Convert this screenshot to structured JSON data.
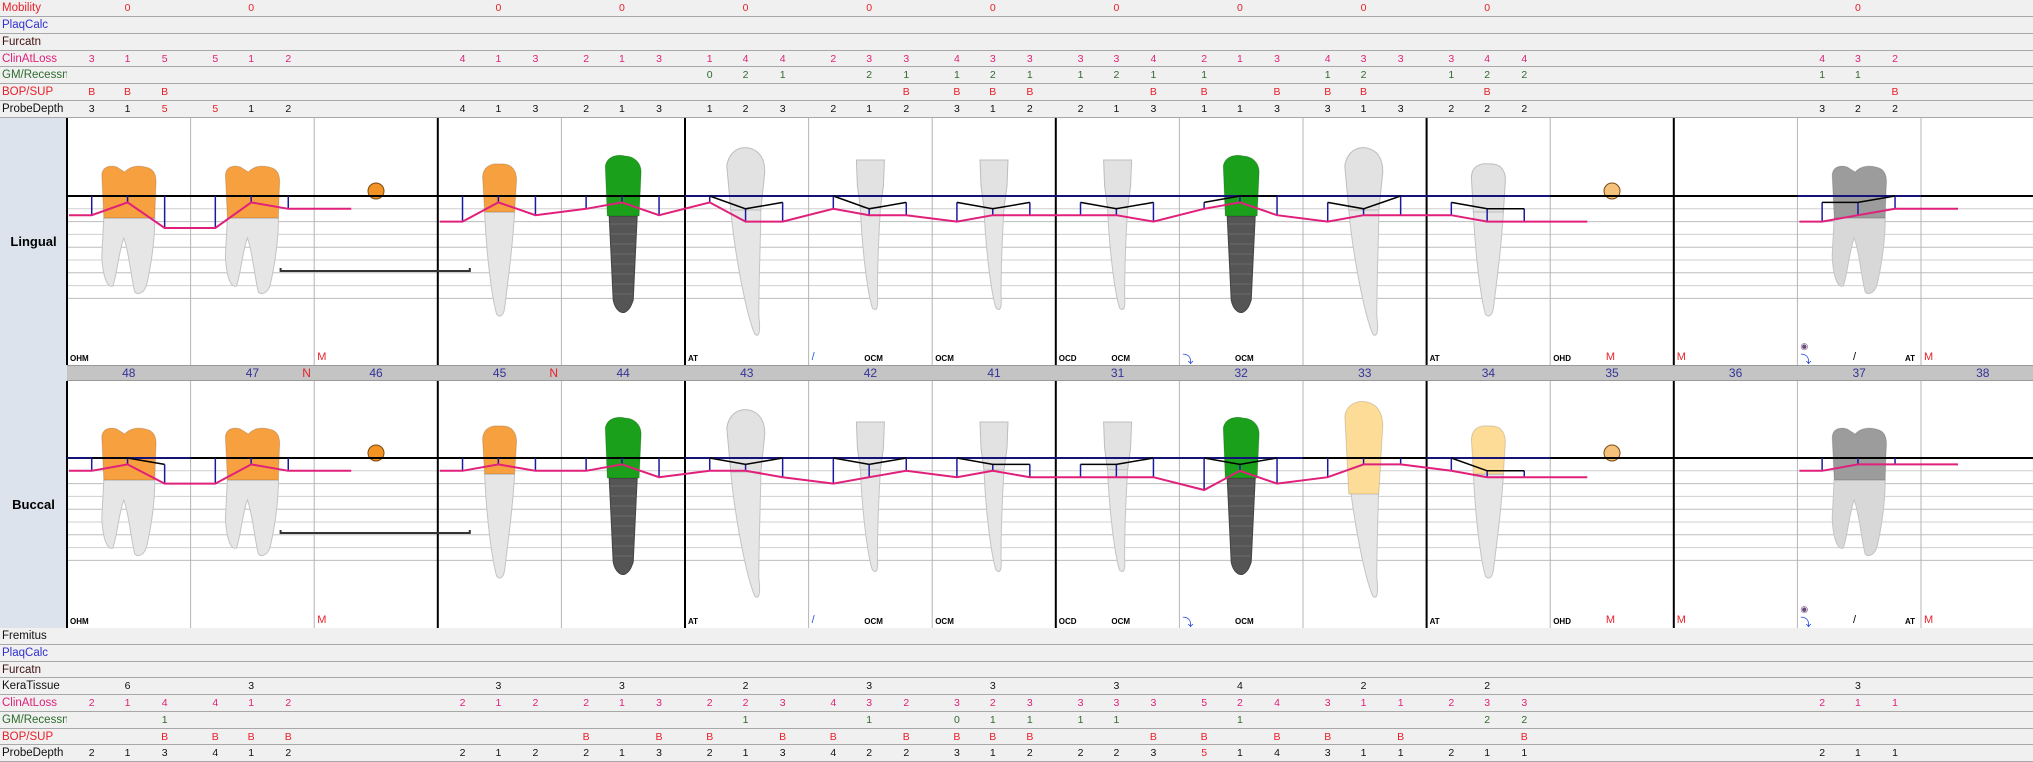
{
  "sections": {
    "lingual": "Lingual",
    "buccal": "Buccal"
  },
  "colors": {
    "mobility": "#e8202a",
    "plaq": "#3030d0",
    "furc": "#401010",
    "cal": "#e0207a",
    "gm": "#2e6b2e",
    "bop": "#e8202a",
    "pd": "#111111",
    "kera": "#111111",
    "fremitus": "#111111",
    "pd_high": "#e8202a",
    "cal_line": "#e0207a",
    "pd_line": "#1a1aa0",
    "gm_line": "#000000",
    "crown_orange": "#f7a040",
    "crown_green": "#1aa01a",
    "crown_white": "#e2e2e2",
    "crown_yellow": "#fddc98",
    "crown_gray": "#9c9c9c",
    "implant_root": "#555555",
    "pontic_orange": "#f39323",
    "pontic_light": "#f5c27e",
    "tooth_number": "#333399"
  },
  "top_rows": [
    {
      "label": "Mobility",
      "key": "mobility"
    },
    {
      "label": "PlaqCalc",
      "key": "plaq"
    },
    {
      "label": "Furcatn",
      "key": "furc"
    },
    {
      "label": "ClinAtLoss",
      "key": "cal"
    },
    {
      "label": "GM/Recessn",
      "key": "gm"
    },
    {
      "label": "BOP/SUP",
      "key": "bop"
    },
    {
      "label": "ProbeDepth",
      "key": "pd"
    }
  ],
  "bottom_rows": [
    {
      "label": "Fremitus",
      "key": "fremitus"
    },
    {
      "label": "PlaqCalc",
      "key": "plaq"
    },
    {
      "label": "Furcatn",
      "key": "furc"
    },
    {
      "label": "KeraTissue",
      "key": "kera"
    },
    {
      "label": "ClinAtLoss",
      "key": "cal"
    },
    {
      "label": "GM/Recessn",
      "key": "gm"
    },
    {
      "label": "BOP/SUP",
      "key": "bop"
    },
    {
      "label": "ProbeDepth",
      "key": "pd"
    }
  ],
  "teeth": [
    {
      "number": "48",
      "type": "molar",
      "crown": {
        "lingual": "orange",
        "buccal": "orange"
      },
      "flag": "",
      "lingual": {
        "mobility": "0",
        "cal": [
          "3",
          "1",
          "5"
        ],
        "gm": [
          "",
          "",
          ""
        ],
        "bop": [
          "B",
          "B",
          "B"
        ],
        "pd": [
          "3",
          "1",
          "5"
        ]
      },
      "buccal": {
        "kera": "6",
        "cal": [
          "2",
          "1",
          "4"
        ],
        "gm": [
          "",
          "",
          "1"
        ],
        "bop": [
          "",
          "",
          "B"
        ],
        "pd": [
          "2",
          "1",
          "3"
        ]
      },
      "notes": [
        {
          "text": "OHM",
          "pos": "left",
          "color": "#000000"
        }
      ]
    },
    {
      "number": "47",
      "type": "molar",
      "crown": {
        "lingual": "orange",
        "buccal": "orange"
      },
      "flag": "N",
      "lingual": {
        "mobility": "0",
        "cal": [
          "5",
          "1",
          "2"
        ],
        "gm": [
          "",
          "",
          ""
        ],
        "bop": [
          "",
          "",
          ""
        ],
        "pd": [
          "5",
          "1",
          "2"
        ]
      },
      "buccal": {
        "kera": "3",
        "cal": [
          "4",
          "1",
          "2"
        ],
        "gm": [
          "",
          "",
          ""
        ],
        "bop": [
          "B",
          "B",
          "B"
        ],
        "pd": [
          "4",
          "1",
          "2"
        ]
      },
      "notes": []
    },
    {
      "number": "46",
      "type": "pontic",
      "pontic": "orange",
      "flag": "",
      "notes": [
        {
          "text": "M",
          "pos": "left",
          "color": "#e8202a",
          "big": true
        }
      ]
    },
    {
      "number": "45",
      "type": "premolar",
      "crown": {
        "lingual": "orange",
        "buccal": "orange"
      },
      "flag": "N",
      "lingual": {
        "mobility": "0",
        "cal": [
          "4",
          "1",
          "3"
        ],
        "gm": [
          "",
          "",
          ""
        ],
        "bop": [
          "",
          "",
          ""
        ],
        "pd": [
          "4",
          "1",
          "3"
        ]
      },
      "buccal": {
        "kera": "3",
        "cal": [
          "2",
          "1",
          "2"
        ],
        "gm": [
          "",
          "",
          ""
        ],
        "bop": [
          "",
          "",
          ""
        ],
        "pd": [
          "2",
          "1",
          "2"
        ]
      },
      "notes": []
    },
    {
      "number": "44",
      "type": "implant",
      "crown": {
        "lingual": "green",
        "buccal": "green"
      },
      "flag": "",
      "lingual": {
        "mobility": "0",
        "cal": [
          "2",
          "1",
          "3"
        ],
        "gm": [
          "",
          "",
          ""
        ],
        "bop": [
          "",
          "",
          ""
        ],
        "pd": [
          "2",
          "1",
          "3"
        ]
      },
      "buccal": {
        "kera": "3",
        "cal": [
          "2",
          "1",
          "3"
        ],
        "gm": [
          "",
          "",
          ""
        ],
        "bop": [
          "B",
          "",
          "B"
        ],
        "pd": [
          "2",
          "1",
          "3"
        ]
      },
      "notes": []
    },
    {
      "number": "43",
      "type": "canine",
      "crown": {
        "lingual": "white",
        "buccal": "white"
      },
      "flag": "",
      "lingual": {
        "mobility": "0",
        "cal": [
          "1",
          "4",
          "4"
        ],
        "gm": [
          "0",
          "2",
          "1"
        ],
        "bop": [
          "",
          "",
          ""
        ],
        "pd": [
          "1",
          "2",
          "3"
        ]
      },
      "buccal": {
        "kera": "2",
        "cal": [
          "2",
          "2",
          "3"
        ],
        "gm": [
          "",
          "1",
          ""
        ],
        "bop": [
          "B",
          "",
          "B"
        ],
        "pd": [
          "2",
          "1",
          "3"
        ]
      },
      "notes": [
        {
          "text": "AT",
          "pos": "left",
          "color": "#000000"
        }
      ]
    },
    {
      "number": "42",
      "type": "incisor",
      "crown": {
        "lingual": "white",
        "buccal": "white"
      },
      "flag": "",
      "lingual": {
        "mobility": "0",
        "cal": [
          "2",
          "3",
          "3"
        ],
        "gm": [
          "",
          "2",
          "1"
        ],
        "bop": [
          "",
          "",
          "B"
        ],
        "pd": [
          "2",
          "1",
          "2"
        ]
      },
      "buccal": {
        "kera": "3",
        "cal": [
          "4",
          "3",
          "2"
        ],
        "gm": [
          "",
          "1",
          ""
        ],
        "bop": [
          "B",
          "",
          "B"
        ],
        "pd": [
          "4",
          "2",
          "2"
        ]
      },
      "notes": [
        {
          "text": "/",
          "pos": "left",
          "color": "#1a5fd0",
          "big": true
        },
        {
          "text": "OCM",
          "pos": "center",
          "color": "#000000"
        }
      ]
    },
    {
      "number": "41",
      "type": "incisor",
      "crown": {
        "lingual": "white",
        "buccal": "white"
      },
      "flag": "",
      "lingual": {
        "mobility": "0",
        "cal": [
          "4",
          "3",
          "3"
        ],
        "gm": [
          "1",
          "2",
          "1"
        ],
        "bop": [
          "B",
          "B",
          "B"
        ],
        "pd": [
          "3",
          "1",
          "2"
        ]
      },
      "buccal": {
        "kera": "3",
        "cal": [
          "3",
          "2",
          "3"
        ],
        "gm": [
          "0",
          "1",
          "1"
        ],
        "bop": [
          "B",
          "B",
          "B"
        ],
        "pd": [
          "3",
          "1",
          "2"
        ]
      },
      "notes": [
        {
          "text": "OCM",
          "pos": "left",
          "color": "#000000"
        }
      ]
    },
    {
      "number": "31",
      "type": "incisor",
      "crown": {
        "lingual": "white",
        "buccal": "white"
      },
      "flag": "",
      "lingual": {
        "mobility": "0",
        "cal": [
          "3",
          "3",
          "4"
        ],
        "gm": [
          "1",
          "2",
          "1"
        ],
        "bop": [
          "",
          "",
          "B"
        ],
        "pd": [
          "2",
          "1",
          "3"
        ]
      },
      "buccal": {
        "kera": "3",
        "cal": [
          "3",
          "3",
          "3"
        ],
        "gm": [
          "1",
          "1",
          ""
        ],
        "bop": [
          "",
          "",
          "B"
        ],
        "pd": [
          "2",
          "2",
          "3"
        ]
      },
      "notes": [
        {
          "text": "OCD",
          "pos": "left",
          "color": "#000000"
        },
        {
          "text": "OCM",
          "pos": "center",
          "color": "#000000"
        }
      ]
    },
    {
      "number": "32",
      "type": "implant",
      "crown": {
        "lingual": "green",
        "buccal": "green"
      },
      "flag": "",
      "lingual": {
        "mobility": "0",
        "cal": [
          "2",
          "1",
          "3"
        ],
        "gm": [
          "1",
          "",
          ""
        ],
        "bop": [
          "B",
          "",
          "B"
        ],
        "pd": [
          "1",
          "1",
          "3"
        ]
      },
      "buccal": {
        "kera": "4",
        "cal": [
          "5",
          "2",
          "4"
        ],
        "gm": [
          "",
          "1",
          ""
        ],
        "bop": [
          "B",
          "",
          "B"
        ],
        "pd": [
          "5",
          "1",
          "4"
        ]
      },
      "notes": [
        {
          "text": "⤵",
          "pos": "left",
          "color": "#1a3fe0",
          "big": true
        },
        {
          "text": "OCM",
          "pos": "center",
          "color": "#000000"
        }
      ]
    },
    {
      "number": "33",
      "type": "canine",
      "crown": {
        "lingual": "white",
        "buccal": "yellow"
      },
      "flag": "",
      "lingual": {
        "mobility": "0",
        "cal": [
          "4",
          "3",
          "3"
        ],
        "gm": [
          "1",
          "2",
          ""
        ],
        "bop": [
          "B",
          "B",
          ""
        ],
        "pd": [
          "3",
          "1",
          "3"
        ]
      },
      "buccal": {
        "kera": "2",
        "cal": [
          "3",
          "1",
          "1"
        ],
        "gm": [
          "",
          "",
          ""
        ],
        "bop": [
          "B",
          "",
          "B"
        ],
        "pd": [
          "3",
          "1",
          "1"
        ]
      },
      "notes": []
    },
    {
      "number": "34",
      "type": "premolar",
      "crown": {
        "lingual": "white",
        "buccal": "yellow"
      },
      "flag": "",
      "lingual": {
        "mobility": "0",
        "cal": [
          "3",
          "4",
          "4"
        ],
        "gm": [
          "1",
          "2",
          "2"
        ],
        "bop": [
          "",
          "B",
          ""
        ],
        "pd": [
          "2",
          "2",
          "2"
        ]
      },
      "buccal": {
        "kera": "2",
        "cal": [
          "2",
          "3",
          "3"
        ],
        "gm": [
          "",
          "2",
          "2"
        ],
        "bop": [
          "",
          "",
          "B"
        ],
        "pd": [
          "2",
          "1",
          "1"
        ]
      },
      "notes": [
        {
          "text": "AT",
          "pos": "left",
          "color": "#000000"
        }
      ]
    },
    {
      "number": "35",
      "type": "pontic",
      "pontic": "light",
      "flag": "",
      "notes": [
        {
          "text": "OHD",
          "pos": "left",
          "color": "#000000"
        },
        {
          "text": "M",
          "pos": "center",
          "color": "#e8202a",
          "big": true
        }
      ]
    },
    {
      "number": "36",
      "type": "missing",
      "flag": "",
      "notes": [
        {
          "text": "M",
          "pos": "left",
          "color": "#e8202a",
          "big": true
        }
      ]
    },
    {
      "number": "37",
      "type": "molar",
      "crown": {
        "lingual": "gray",
        "buccal": "gray"
      },
      "flag": "",
      "lingual": {
        "mobility": "0",
        "cal": [
          "4",
          "3",
          "2"
        ],
        "gm": [
          "1",
          "1",
          ""
        ],
        "bop": [
          "",
          "",
          "B"
        ],
        "pd": [
          "3",
          "2",
          "2"
        ]
      },
      "buccal": {
        "kera": "3",
        "cal": [
          "2",
          "1",
          "1"
        ],
        "gm": [
          "",
          "",
          ""
        ],
        "bop": [
          "",
          "",
          ""
        ],
        "pd": [
          "2",
          "1",
          "1"
        ]
      },
      "notes": [
        {
          "text": "⤵",
          "pos": "left",
          "color": "#1a3fe0",
          "big": true,
          "eye": true
        },
        {
          "text": "/",
          "pos": "center",
          "color": "#000000",
          "big": true
        },
        {
          "text": "AT",
          "pos": "right",
          "color": "#000000"
        }
      ]
    },
    {
      "number": "38",
      "type": "missing",
      "flag": "",
      "notes": [
        {
          "text": "M",
          "pos": "left",
          "color": "#e8202a",
          "big": true
        }
      ]
    }
  ]
}
